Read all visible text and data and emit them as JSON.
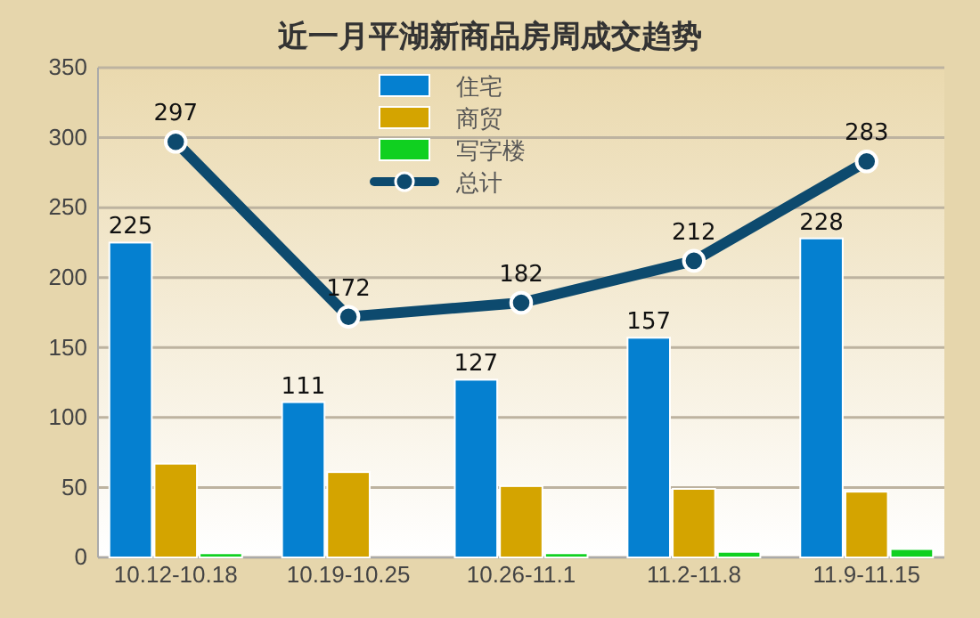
{
  "chart_data": {
    "type": "bar",
    "title": "近一月平湖新商品房周成交趋势",
    "categories": [
      "10.12-10.18",
      "10.19-10.25",
      "10.26-11.1",
      "11.2-11.8",
      "11.9-11.15"
    ],
    "series": [
      {
        "name": "住宅",
        "color": "#0580d0",
        "values": [
          225,
          111,
          127,
          157,
          228
        ],
        "value_labels": [
          "225",
          "111",
          "127",
          "157",
          "228"
        ]
      },
      {
        "name": "商贸",
        "color": "#d4a400",
        "values": [
          67,
          61,
          51,
          49,
          47
        ]
      },
      {
        "name": "写字楼",
        "color": "#10d020",
        "values": [
          3,
          0,
          3,
          4,
          6
        ]
      },
      {
        "name": "总计",
        "type": "line",
        "color": "#0d4a6e",
        "values": [
          297,
          172,
          182,
          212,
          283
        ],
        "value_labels": [
          "297",
          "172",
          "182",
          "212",
          "283"
        ]
      }
    ],
    "ylim": [
      0,
      350
    ],
    "yticks": [
      0,
      50,
      100,
      150,
      200,
      250,
      300,
      350
    ],
    "grid": "y",
    "legend": "top",
    "marker": "circle"
  }
}
